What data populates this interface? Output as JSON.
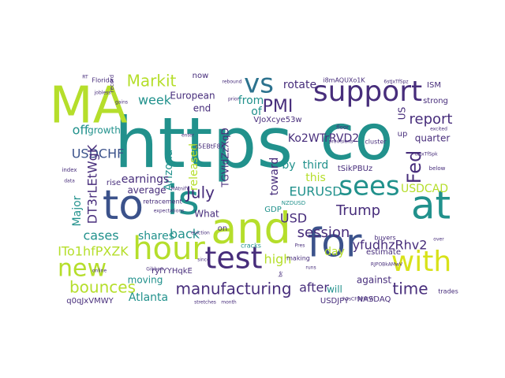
{
  "wordcloud": {
    "palette": {
      "teal": "#21918c",
      "yellowgreen": "#b5de2b",
      "purple": "#472d7b",
      "darkblue": "#3b528b",
      "blue": "#2c728e",
      "green": "#5ec962",
      "lime": "#d8e219",
      "navy": "#31688e",
      "violet": "#482878",
      "mint": "#35b779",
      "seafoam": "#27ad81",
      "deep": "#440154"
    },
    "words": [
      {
        "text": "https",
        "color": "teal",
        "rank": 1
      },
      {
        "text": "co",
        "color": "teal",
        "rank": 1
      },
      {
        "text": "MA",
        "color": "yellowgreen",
        "rank": 2
      },
      {
        "text": "and",
        "color": "yellowgreen",
        "rank": 2
      },
      {
        "text": "for",
        "color": "darkblue",
        "rank": 2
      },
      {
        "text": "to",
        "color": "darkblue",
        "rank": 2
      },
      {
        "text": "is",
        "color": "teal",
        "rank": 2
      },
      {
        "text": "at",
        "color": "teal",
        "rank": 2
      },
      {
        "text": "with",
        "color": "lime",
        "rank": 2
      },
      {
        "text": "hour",
        "color": "yellowgreen",
        "rank": 2
      },
      {
        "text": "test",
        "color": "purple",
        "rank": 2
      },
      {
        "text": "support",
        "color": "purple",
        "rank": 3
      },
      {
        "text": "sees",
        "color": "teal",
        "rank": 3
      },
      {
        "text": "vs",
        "color": "blue",
        "rank": 3
      },
      {
        "text": "new",
        "color": "yellowgreen",
        "rank": 3
      },
      {
        "text": "Fed",
        "color": "purple",
        "rank": 4
      },
      {
        "text": "manufacturing",
        "color": "purple",
        "rank": 4
      },
      {
        "text": "bounces",
        "color": "yellowgreen",
        "rank": 4
      },
      {
        "text": "PMI",
        "color": "purple",
        "rank": 4
      },
      {
        "text": "July",
        "color": "purple",
        "rank": 4
      },
      {
        "text": "time",
        "color": "purple",
        "rank": 4
      },
      {
        "text": "report",
        "color": "purple",
        "rank": 4
      },
      {
        "text": "Markit",
        "color": "yellowgreen",
        "rank": 4
      },
      {
        "text": "session",
        "color": "purple",
        "rank": 4
      },
      {
        "text": "Trump",
        "color": "purple",
        "rank": 4
      },
      {
        "text": "EURUSD",
        "color": "teal",
        "rank": 4
      },
      {
        "text": "USDCHF",
        "color": "darkblue",
        "rank": 4
      },
      {
        "text": "high",
        "color": "yellowgreen",
        "rank": 4
      },
      {
        "text": "after",
        "color": "purple",
        "rank": 4
      },
      {
        "text": "USD",
        "color": "purple",
        "rank": 4
      },
      {
        "text": "off",
        "color": "teal",
        "rank": 4
      },
      {
        "text": "week",
        "color": "teal",
        "rank": 5
      },
      {
        "text": "Major",
        "color": "teal",
        "rank": 5
      },
      {
        "text": "cases",
        "color": "teal",
        "rank": 5
      },
      {
        "text": "shares",
        "color": "teal",
        "rank": 5
      },
      {
        "text": "back",
        "color": "teal",
        "rank": 5
      },
      {
        "text": "USDCAD",
        "color": "yellowgreen",
        "rank": 5
      },
      {
        "text": "day",
        "color": "yellowgreen",
        "rank": 5
      },
      {
        "text": "from",
        "color": "teal",
        "rank": 5
      },
      {
        "text": "of",
        "color": "teal",
        "rank": 5
      },
      {
        "text": "by",
        "color": "teal",
        "rank": 5
      },
      {
        "text": "third",
        "color": "teal",
        "rank": 5
      },
      {
        "text": "rotate",
        "color": "purple",
        "rank": 5
      },
      {
        "text": "quarter",
        "color": "purple",
        "rank": 5
      },
      {
        "text": "end",
        "color": "purple",
        "rank": 5
      },
      {
        "text": "European",
        "color": "purple",
        "rank": 5
      },
      {
        "text": "released",
        "color": "yellowgreen",
        "rank": 5
      },
      {
        "text": "toward",
        "color": "purple",
        "rank": 5
      },
      {
        "text": "Arizona",
        "color": "teal",
        "rank": 5
      },
      {
        "text": "What",
        "color": "purple",
        "rank": 5
      },
      {
        "text": "Atlanta",
        "color": "teal",
        "rank": 5
      },
      {
        "text": "moving",
        "color": "teal",
        "rank": 5
      },
      {
        "text": "earnings",
        "color": "purple",
        "rank": 5
      },
      {
        "text": "average",
        "color": "purple",
        "rank": 5
      },
      {
        "text": "growth",
        "color": "teal",
        "rank": 5
      },
      {
        "text": "US",
        "color": "purple",
        "rank": 5
      },
      {
        "text": "this",
        "color": "yellowgreen",
        "rank": 5
      },
      {
        "text": "strong",
        "color": "purple",
        "rank": 6
      },
      {
        "text": "ISM",
        "color": "purple",
        "rank": 6
      },
      {
        "text": "up",
        "color": "purple",
        "rank": 6
      },
      {
        "text": "will",
        "color": "teal",
        "rank": 6
      },
      {
        "text": "against",
        "color": "purple",
        "rank": 6
      },
      {
        "text": "now",
        "color": "purple",
        "rank": 6
      },
      {
        "text": "GDP",
        "color": "teal",
        "rank": 6
      },
      {
        "text": "on",
        "color": "purple",
        "rank": 6
      },
      {
        "text": "rise",
        "color": "purple",
        "rank": 6
      },
      {
        "text": "estimate",
        "color": "purple",
        "rank": 6
      },
      {
        "text": "USDJPY",
        "color": "purple",
        "rank": 6
      },
      {
        "text": "NASDAQ",
        "color": "purple",
        "rank": 6
      },
      {
        "text": "trades",
        "color": "purple",
        "rank": 6
      },
      {
        "text": "buyers",
        "color": "purple",
        "rank": 6
      },
      {
        "text": "making",
        "color": "purple",
        "rank": 6
      },
      {
        "text": "cracks",
        "color": "teal",
        "rank": 6
      },
      {
        "text": "cluster",
        "color": "purple",
        "rank": 6
      },
      {
        "text": "index",
        "color": "purple",
        "rank": 6
      },
      {
        "text": "below",
        "color": "purple",
        "rank": 6
      },
      {
        "text": "retracement",
        "color": "purple",
        "rank": 6
      },
      {
        "text": "Florida",
        "color": "purple",
        "rank": 6
      },
      {
        "text": "record",
        "color": "purple",
        "rank": 6
      },
      {
        "text": "rebound",
        "color": "purple",
        "rank": 7
      },
      {
        "text": "prior",
        "color": "purple",
        "rank": 7
      },
      {
        "text": "floor",
        "color": "purple",
        "rank": 7
      },
      {
        "text": "gains",
        "color": "purple",
        "rank": 7
      },
      {
        "text": "jobless",
        "color": "purple",
        "rank": 7
      },
      {
        "text": "provisions",
        "color": "purple",
        "rank": 7
      },
      {
        "text": "expectations",
        "color": "purple",
        "rank": 7
      },
      {
        "text": "over",
        "color": "purple",
        "rank": 7
      },
      {
        "text": "Pres",
        "color": "purple",
        "rank": 7
      },
      {
        "text": "RT",
        "color": "purple",
        "rank": 7
      },
      {
        "text": "runs",
        "color": "purple",
        "rank": 7
      },
      {
        "text": "be",
        "color": "purple",
        "rank": 7
      },
      {
        "text": "month",
        "color": "purple",
        "rank": 7
      },
      {
        "text": "stretches",
        "color": "purple",
        "rank": 7
      },
      {
        "text": "since",
        "color": "purple",
        "rank": 7
      },
      {
        "text": "enter",
        "color": "purple",
        "rank": 7
      },
      {
        "text": "data",
        "color": "purple",
        "rank": 7
      },
      {
        "text": "online",
        "color": "purple",
        "rank": 7
      },
      {
        "text": "Gibbon",
        "color": "purple",
        "rank": 7
      },
      {
        "text": "NZDUSD",
        "color": "teal",
        "rank": 7
      },
      {
        "text": "eviction",
        "color": "purple",
        "rank": 7
      },
      {
        "text": "excited",
        "color": "purple",
        "rank": 7
      },
      {
        "text": "MAtnifY",
        "color": "purple",
        "rank": 7
      },
      {
        "text": "DT3rLEtWgK",
        "color": "purple",
        "rank": 5
      },
      {
        "text": "ITo1hfPXZK",
        "color": "yellowgreen",
        "rank": 5
      },
      {
        "text": "yfudhzRhv2",
        "color": "purple",
        "rank": 5
      },
      {
        "text": "Ko2WTrRVD2",
        "color": "purple",
        "rank": 5
      },
      {
        "text": "VJoXcye53w",
        "color": "purple",
        "rank": 6
      },
      {
        "text": "q0qJxVMWY",
        "color": "purple",
        "rank": 6
      },
      {
        "text": "tSikPBUz",
        "color": "purple",
        "rank": 6
      },
      {
        "text": "TGVIdZzXqD",
        "color": "purple",
        "rank": 6
      },
      {
        "text": "ryfYYHqkE",
        "color": "purple",
        "rank": 7
      },
      {
        "text": "i8mAQUXo1K",
        "color": "purple",
        "rank": 7
      },
      {
        "text": "s5EBtF8X",
        "color": "purple",
        "rank": 7
      },
      {
        "text": "h5sCFSVhFW",
        "color": "purple",
        "rank": 7
      },
      {
        "text": "6stJxTfSpz",
        "color": "purple",
        "rank": 7
      },
      {
        "text": "6zJxTfSpk",
        "color": "purple",
        "rank": 7
      },
      {
        "text": "RJPOBkAMwV",
        "color": "purple",
        "rank": 7
      }
    ]
  }
}
